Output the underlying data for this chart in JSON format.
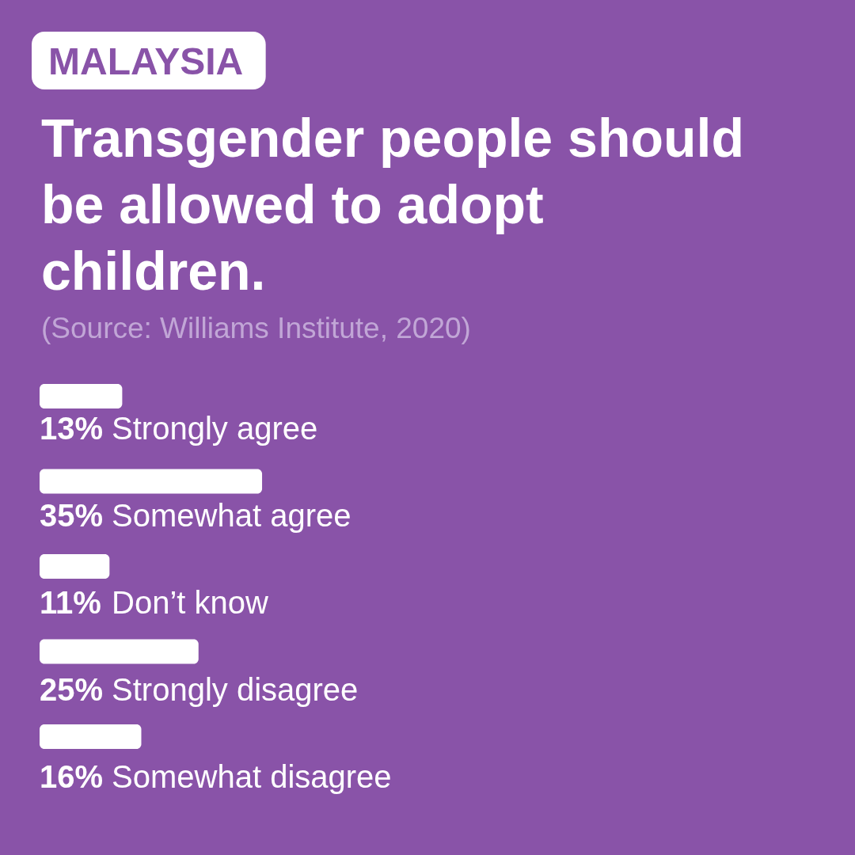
{
  "chart_data": {
    "type": "bar",
    "orientation": "horizontal",
    "title": "Transgender people should be allowed to adopt children.",
    "annotations": [
      "MALAYSIA",
      "(Source: Williams Institute, 2020)"
    ],
    "categories": [
      "Strongly agree",
      "Somewhat agree",
      "Don’t know",
      "Strongly disagree",
      "Somewhat disagree"
    ],
    "values": [
      13,
      35,
      11,
      25,
      16
    ],
    "value_labels": [
      "13%",
      "35%",
      "11%",
      "25%",
      "16%"
    ],
    "color": "#ffffff"
  }
}
